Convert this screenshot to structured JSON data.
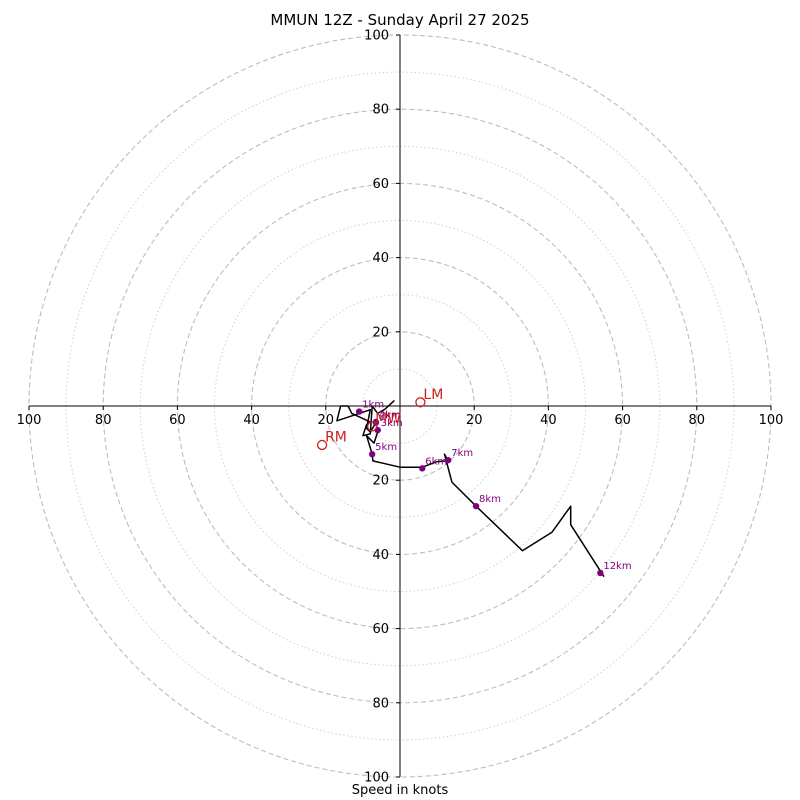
{
  "chart_data": {
    "type": "hodograph",
    "title": "MMUN 12Z - Sunday April 27 2025",
    "xlabel": "Speed in knots",
    "range": [
      -100,
      100
    ],
    "ring_major": [
      20,
      40,
      60,
      80,
      100
    ],
    "ring_minor": [
      10,
      30,
      50,
      70,
      90
    ],
    "tick_labels": [
      "100",
      "80",
      "60",
      "40",
      "20",
      "20",
      "40",
      "60",
      "80",
      "100"
    ],
    "tick_values": [
      -100,
      -80,
      -60,
      -40,
      -20,
      20,
      40,
      60,
      80,
      100
    ],
    "grid": true,
    "colors": {
      "trace": "#000000",
      "height_marker": "#800080",
      "motion": "#cc2020",
      "grid": "#bdbdbd"
    },
    "trace": [
      [
        -1.5,
        1.5
      ],
      [
        -4,
        -0.8
      ],
      [
        -6,
        -2
      ],
      [
        -7.5,
        0
      ],
      [
        -8,
        -7.5
      ],
      [
        -10,
        -8
      ],
      [
        -9,
        -5
      ],
      [
        -8,
        -4.3
      ],
      [
        -13,
        -2
      ],
      [
        -14,
        0
      ],
      [
        -16,
        0
      ],
      [
        -17,
        -4
      ],
      [
        -11,
        -2
      ],
      [
        -8,
        -1
      ],
      [
        -9,
        -6
      ],
      [
        -8,
        -7
      ],
      [
        -6.5,
        -4.5
      ],
      [
        -6,
        -7
      ],
      [
        -7,
        -10
      ],
      [
        -9,
        -8
      ],
      [
        -7.5,
        -13
      ],
      [
        -7.3,
        -14.8
      ],
      [
        0,
        -16.5
      ],
      [
        6,
        -16.5
      ],
      [
        10,
        -15
      ],
      [
        13,
        -14.8
      ],
      [
        12,
        -13
      ],
      [
        14,
        -20.5
      ],
      [
        20.5,
        -27
      ],
      [
        33,
        -39
      ],
      [
        41,
        -34
      ],
      [
        46,
        -27
      ],
      [
        46,
        -32
      ],
      [
        55,
        -46
      ]
    ],
    "height_markers": [
      {
        "label": "1km",
        "u": -11,
        "v": -1.5
      },
      {
        "label": "2km",
        "u": -6.5,
        "v": -4.5
      },
      {
        "label": "3km",
        "u": -6,
        "v": -6.5
      },
      {
        "label": "4km",
        "u": -6.5,
        "v": -4.3
      },
      {
        "label": "5km",
        "u": -7.5,
        "v": -13
      },
      {
        "label": "6km",
        "u": 6,
        "v": -16.8
      },
      {
        "label": "7km",
        "u": 13,
        "v": -14.6
      },
      {
        "label": "8km",
        "u": 20.5,
        "v": -27
      },
      {
        "label": "12km",
        "u": 54,
        "v": -45
      }
    ],
    "storm_motion": [
      {
        "label": "LM",
        "u": 5.5,
        "v": 1
      },
      {
        "label": "RM",
        "u": -21,
        "v": -10.5
      },
      {
        "label": "MW",
        "u": -7.5,
        "v": -5.5
      }
    ]
  }
}
